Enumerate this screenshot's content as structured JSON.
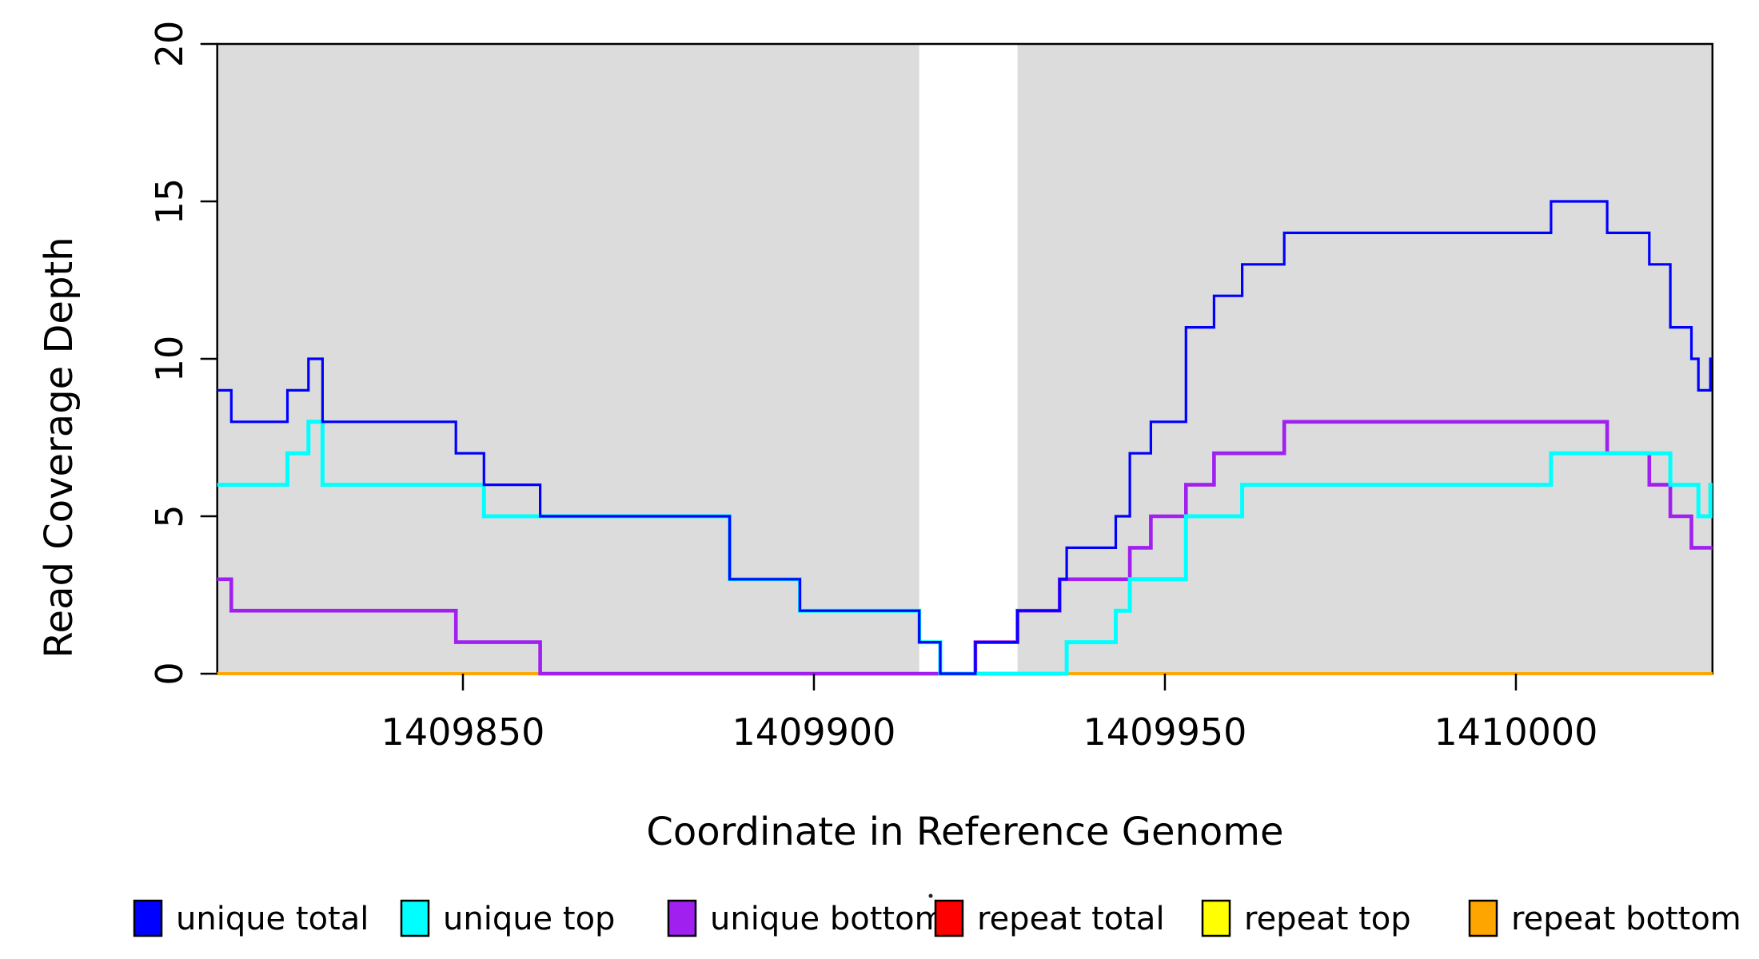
{
  "figure": {
    "background": "#FFFFFF",
    "shaded_band_color": "#DCDCDC",
    "axis_color": "#000000"
  },
  "chart_data": {
    "type": "line",
    "subtype": "step-coverage",
    "title": "",
    "xlabel": "Coordinate in Reference Genome",
    "ylabel": "Read Coverage Depth",
    "x_domain": [
      1409815,
      1410028
    ],
    "ylim": [
      0,
      20
    ],
    "x_ticks": [
      1409850,
      1409900,
      1409950,
      1410000
    ],
    "y_ticks": [
      0,
      5,
      10,
      15,
      20
    ],
    "grid": false,
    "legend_position": "bottom",
    "shaded_regions": [
      {
        "from": 1409815,
        "to": 1409915
      },
      {
        "from": 1409929,
        "to": 1410028
      }
    ],
    "series": [
      {
        "name": "repeat total",
        "color": "#FF0000",
        "steps": [
          [
            1409815,
            0
          ]
        ]
      },
      {
        "name": "repeat top",
        "color": "#FFFF00",
        "steps": [
          [
            1409815,
            0
          ]
        ]
      },
      {
        "name": "repeat bottom",
        "color": "#FFA500",
        "steps": [
          [
            1409815,
            0
          ]
        ]
      },
      {
        "name": "unique bottom",
        "color": "#A020F0",
        "steps": [
          [
            1409815,
            3
          ],
          [
            1409817,
            2
          ],
          [
            1409849,
            1
          ],
          [
            1409861,
            0
          ],
          [
            1409923,
            1
          ],
          [
            1409929,
            2
          ],
          [
            1409935,
            3
          ],
          [
            1409945,
            4
          ],
          [
            1409948,
            5
          ],
          [
            1409953,
            6
          ],
          [
            1409957,
            7
          ],
          [
            1409967,
            8
          ],
          [
            1410013,
            7
          ],
          [
            1410019,
            6
          ],
          [
            1410022,
            5
          ],
          [
            1410025,
            4
          ]
        ]
      },
      {
        "name": "unique top",
        "color": "#00FFFF",
        "steps": [
          [
            1409815,
            6
          ],
          [
            1409825,
            7
          ],
          [
            1409828,
            8
          ],
          [
            1409830,
            6
          ],
          [
            1409853,
            5
          ],
          [
            1409888,
            3
          ],
          [
            1409898,
            2
          ],
          [
            1409915,
            1
          ],
          [
            1409918,
            0
          ],
          [
            1409936,
            1
          ],
          [
            1409943,
            2
          ],
          [
            1409945,
            3
          ],
          [
            1409953,
            5
          ],
          [
            1409961,
            6
          ],
          [
            1410005,
            7
          ],
          [
            1410022,
            6
          ],
          [
            1410026,
            5
          ],
          [
            1410027.7,
            6
          ]
        ]
      },
      {
        "name": "unique total",
        "color": "#0000FF",
        "steps": [
          [
            1409815,
            9
          ],
          [
            1409817,
            8
          ],
          [
            1409825,
            9
          ],
          [
            1409828,
            10
          ],
          [
            1409830,
            8
          ],
          [
            1409849,
            7
          ],
          [
            1409853,
            6
          ],
          [
            1409861,
            5
          ],
          [
            1409888,
            3
          ],
          [
            1409898,
            2
          ],
          [
            1409915,
            1
          ],
          [
            1409918,
            0
          ],
          [
            1409923,
            1
          ],
          [
            1409929,
            2
          ],
          [
            1409935,
            3
          ],
          [
            1409936,
            4
          ],
          [
            1409943,
            5
          ],
          [
            1409945,
            7
          ],
          [
            1409948,
            8
          ],
          [
            1409953,
            11
          ],
          [
            1409957,
            12
          ],
          [
            1409961,
            13
          ],
          [
            1409967,
            14
          ],
          [
            1410005,
            15
          ],
          [
            1410013,
            14
          ],
          [
            1410019,
            13
          ],
          [
            1410022,
            11
          ],
          [
            1410025,
            10
          ],
          [
            1410026,
            9
          ],
          [
            1410027.7,
            10
          ]
        ]
      }
    ],
    "legend_order": [
      "unique total",
      "unique top",
      "unique bottom",
      "repeat total",
      "repeat top",
      "repeat bottom"
    ]
  },
  "legend": {
    "items": [
      {
        "label": "unique total",
        "color": "#0000FF",
        "marker": "square"
      },
      {
        "label": "unique top",
        "color": "#00FFFF",
        "marker": "square"
      },
      {
        "label": "unique bottom",
        "color": "#A020F0",
        "marker": "square"
      },
      {
        "label": "repeat total",
        "color": "#FF0000",
        "marker": "square"
      },
      {
        "label": "repeat top",
        "color": "#FFFF00",
        "marker": "square"
      },
      {
        "label": "repeat bottom",
        "color": "#FFA500",
        "marker": "square"
      }
    ],
    "stray_mark": "."
  }
}
